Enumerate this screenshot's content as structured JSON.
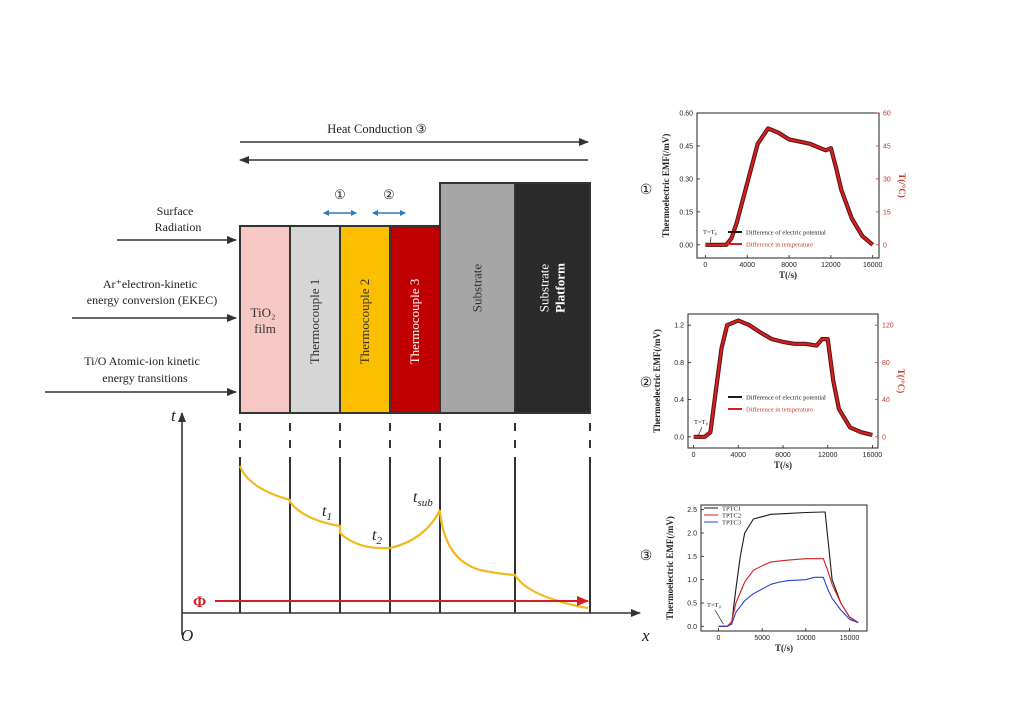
{
  "heat_conduction_label": "Heat Conduction ③",
  "mode_marker_1": "①",
  "mode_marker_2": "②",
  "mode_marker_3": "③",
  "inputs": {
    "surface_radiation_line1": "Surface",
    "surface_radiation_line2": "Radiation",
    "ekec_line1": "Ar⁺electron-kinetic",
    "ekec_line2": "energy conversion (EKEC)",
    "atomic_line1": "Ti/O Atomic-ion kinetic",
    "atomic_line2": "energy transitions"
  },
  "layers": [
    {
      "label": "TiO₂",
      "label2": "film",
      "color": "#f6c7c3"
    },
    {
      "label": "Thermocouple 1",
      "color": "#d6d6d6"
    },
    {
      "label": "Thermocouple 2",
      "color": "#fbbf00"
    },
    {
      "label": "Thermocouple 3",
      "color": "#c00000"
    },
    {
      "label": "Substrate",
      "color": "#a6a6a6"
    },
    {
      "label": "Substrate",
      "label2": "Platform",
      "color": "#2a2a2a"
    }
  ],
  "temperature_axis": {
    "y_label": "t",
    "x_label": "x",
    "origin": "O",
    "t1": "t",
    "t1_sub": "1",
    "t2": "t",
    "t2_sub": "2",
    "tsub": "t",
    "tsub_sub": "sub",
    "flux_label": "Φ"
  },
  "colors": {
    "curve": "#f2b81c",
    "flux": "#d32020",
    "mode_arrow": "#2e7cb8",
    "black_series": "#1a1a1a",
    "red_series": "#d32020",
    "blue_series": "#2b3fd4"
  },
  "chart_data": [
    {
      "type": "line",
      "marker": "①",
      "ylabel": "Thermoelectric EMF(/mV)",
      "y2label": "T(/°C)",
      "xlabel": "T(/s)",
      "annotation": "T=T₀",
      "xlim": [
        -800,
        16600
      ],
      "ylim": [
        -0.06,
        0.6
      ],
      "y2lim": [
        -6,
        60
      ],
      "xticks": [
        "0",
        "4000",
        "8000",
        "12000",
        "16000"
      ],
      "yticks": [
        "0.00",
        "0.15",
        "0.30",
        "0.45",
        "0.60"
      ],
      "y2ticks": [
        "0",
        "15",
        "30",
        "45",
        "60"
      ],
      "series": [
        {
          "name": "Difference of electric potential",
          "color": "#1a1a1a",
          "x": [
            0,
            2000,
            2500,
            3000,
            4000,
            5000,
            6000,
            7000,
            8000,
            9000,
            10000,
            11000,
            11500,
            12000,
            12500,
            13000,
            14000,
            15000,
            16000
          ],
          "y": [
            0.0,
            0.0,
            0.03,
            0.1,
            0.28,
            0.46,
            0.53,
            0.51,
            0.48,
            0.47,
            0.46,
            0.44,
            0.43,
            0.44,
            0.35,
            0.25,
            0.12,
            0.04,
            0.0
          ]
        },
        {
          "name": "Difference in temperature",
          "color": "#d32020",
          "x": [
            0,
            2000,
            2500,
            3000,
            4000,
            5000,
            6000,
            7000,
            8000,
            9000,
            10000,
            11000,
            11500,
            12000,
            12500,
            13000,
            14000,
            15000,
            16000
          ],
          "y": [
            0.0,
            0.0,
            0.03,
            0.1,
            0.28,
            0.46,
            0.53,
            0.51,
            0.48,
            0.47,
            0.46,
            0.44,
            0.43,
            0.44,
            0.35,
            0.25,
            0.12,
            0.04,
            0.0
          ]
        }
      ]
    },
    {
      "type": "line",
      "marker": "②",
      "ylabel": "Thermoelectric EMF(/mV)",
      "y2label": "T(/°C)",
      "xlabel": "T(/s)",
      "annotation": "T=T₀",
      "xlim": [
        -500,
        16500
      ],
      "ylim": [
        -0.12,
        1.32
      ],
      "y2lim": [
        -12,
        132
      ],
      "xticks": [
        "0",
        "4000",
        "8000",
        "12000",
        "16000"
      ],
      "yticks": [
        "0.0",
        "0.4",
        "0.8",
        "1.2"
      ],
      "y2ticks": [
        "0",
        "40",
        "80",
        "120"
      ],
      "series": [
        {
          "name": "Difference of electric potential",
          "color": "#1a1a1a",
          "x": [
            0,
            1000,
            1500,
            2000,
            2500,
            3000,
            4000,
            5000,
            6000,
            7000,
            8000,
            9000,
            10000,
            11000,
            11500,
            12000,
            12500,
            13000,
            14000,
            15000,
            16000
          ],
          "y": [
            0.0,
            0.0,
            0.05,
            0.5,
            0.95,
            1.2,
            1.25,
            1.2,
            1.12,
            1.05,
            1.02,
            1.0,
            1.0,
            0.98,
            1.05,
            1.05,
            0.6,
            0.3,
            0.1,
            0.05,
            0.02
          ]
        },
        {
          "name": "Difference in temperature",
          "color": "#d32020",
          "x": [
            0,
            1000,
            1500,
            2000,
            2500,
            3000,
            4000,
            5000,
            6000,
            7000,
            8000,
            9000,
            10000,
            11000,
            11500,
            12000,
            12500,
            13000,
            14000,
            15000,
            16000
          ],
          "y": [
            0.0,
            0.0,
            0.05,
            0.5,
            0.95,
            1.2,
            1.25,
            1.2,
            1.12,
            1.05,
            1.02,
            1.0,
            1.0,
            0.98,
            1.05,
            1.05,
            0.6,
            0.3,
            0.1,
            0.05,
            0.02
          ]
        }
      ]
    },
    {
      "type": "line",
      "marker": "③",
      "ylabel": "Thermoelectric EMF(/mV)",
      "xlabel": "T(/s)",
      "annotation": "T=T₀",
      "xlim": [
        -2000,
        17000
      ],
      "ylim": [
        -0.1,
        2.6
      ],
      "xticks": [
        "0",
        "5000",
        "10000",
        "15000"
      ],
      "yticks": [
        "0.0",
        "0.5",
        "1.0",
        "1.5",
        "2.0",
        "2.5"
      ],
      "series": [
        {
          "name": "TPTC1",
          "color": "#1a1a1a",
          "x": [
            0,
            1000,
            1500,
            2000,
            2500,
            3000,
            4000,
            5000,
            6000,
            8000,
            10000,
            12000,
            12200,
            13000,
            14000,
            15000,
            16000
          ],
          "y": [
            0.0,
            0.0,
            0.05,
            0.8,
            1.5,
            2.0,
            2.3,
            2.35,
            2.4,
            2.42,
            2.44,
            2.45,
            2.45,
            1.0,
            0.5,
            0.2,
            0.08
          ]
        },
        {
          "name": "TPTC2",
          "color": "#d32020",
          "x": [
            0,
            1000,
            1500,
            2000,
            3000,
            4000,
            5000,
            6000,
            8000,
            10000,
            11000,
            12000,
            12500,
            13000,
            14000,
            15000,
            16000
          ],
          "y": [
            0.0,
            0.0,
            0.1,
            0.5,
            0.95,
            1.2,
            1.3,
            1.38,
            1.42,
            1.45,
            1.45,
            1.45,
            1.2,
            0.9,
            0.5,
            0.2,
            0.08
          ]
        },
        {
          "name": "TPTC3",
          "color": "#2b3fd4",
          "x": [
            0,
            1000,
            1500,
            2000,
            3000,
            4000,
            5000,
            6000,
            7000,
            8000,
            10000,
            11000,
            12000,
            12500,
            13000,
            14000,
            15000,
            16000
          ],
          "y": [
            0.0,
            0.0,
            0.05,
            0.3,
            0.55,
            0.7,
            0.8,
            0.9,
            0.95,
            0.98,
            1.0,
            1.05,
            1.05,
            0.8,
            0.6,
            0.35,
            0.15,
            0.08
          ]
        }
      ]
    }
  ]
}
